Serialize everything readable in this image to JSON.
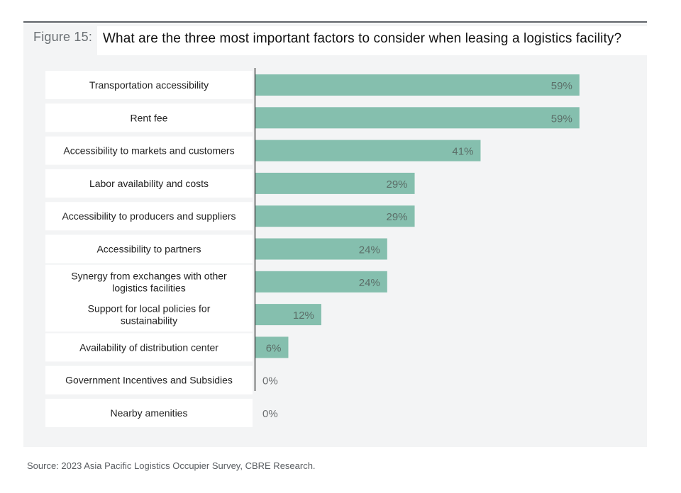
{
  "figure_label": "Figure 15:",
  "title": "What are the three most important factors to consider when leasing a logistics facility?",
  "source": "Source: 2023 Asia Pacific Logistics Occupier Survey, CBRE Research.",
  "colors": {
    "bar": "#85bfae",
    "panel": "#f3f4f5",
    "label_box": "#ffffff",
    "value_on_bar": "#5b6e68",
    "value_outside": "#6b6e70"
  },
  "chart_data": {
    "type": "bar",
    "orientation": "horizontal",
    "title": "What are the three most important factors to consider when leasing a logistics facility?",
    "xlabel": "",
    "ylabel": "",
    "xlim": [
      0,
      70
    ],
    "grid": false,
    "legend": "none",
    "categories": [
      [
        "Transportation accessibility"
      ],
      [
        "Rent fee"
      ],
      [
        "Accessibility to markets and customers"
      ],
      [
        "Labor availability and costs"
      ],
      [
        "Accessibility to producers and suppliers"
      ],
      [
        "Accessibility to partners"
      ],
      [
        "Synergy from exchanges with other",
        "logistics facilities"
      ],
      [
        "Support for local policies for",
        "sustainability"
      ],
      [
        "Availability of distribution center"
      ],
      [
        "Government Incentives and Subsidies"
      ],
      [
        "Nearby amenities"
      ]
    ],
    "values": [
      59,
      59,
      41,
      29,
      29,
      24,
      24,
      12,
      6,
      0,
      0
    ],
    "value_labels": [
      "59%",
      "59%",
      "41%",
      "29%",
      "29%",
      "24%",
      "24%",
      "12%",
      "6%",
      "0%",
      "0%"
    ]
  }
}
